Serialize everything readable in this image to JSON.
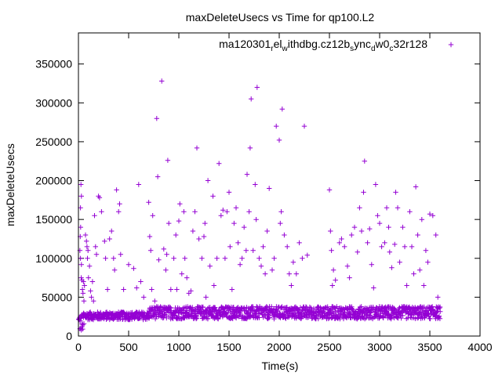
{
  "chart_data": {
    "type": "scatter",
    "title": "maxDeleteUsecs vs Time for qp100.L2",
    "xlabel": "Time(s)",
    "ylabel": "maxDeleteUsecs",
    "xlim": [
      0,
      4000
    ],
    "ylim": [
      0,
      390000
    ],
    "xticks": [
      0,
      500,
      1000,
      1500,
      2000,
      2500,
      3000,
      3500,
      4000
    ],
    "yticks": [
      0,
      50000,
      100000,
      150000,
      200000,
      250000,
      300000,
      350000
    ],
    "grid": false,
    "legend_position": "top-right",
    "marker": "+",
    "color": "#9400d3",
    "series": [
      {
        "name": "ma120301_rel_withdbg.cz12b_sync_dw0_c32r128",
        "legend_text": {
          "parts": [
            {
              "text": "ma120301",
              "sub": false
            },
            {
              "text": "r",
              "sub": true
            },
            {
              "text": "el",
              "sub": false
            },
            {
              "text": "w",
              "sub": true
            },
            {
              "text": "ithdbg.cz12b",
              "sub": false
            },
            {
              "text": "s",
              "sub": true
            },
            {
              "text": "ync",
              "sub": false
            },
            {
              "text": "d",
              "sub": true
            },
            {
              "text": "w0",
              "sub": false
            },
            {
              "text": "c",
              "sub": true
            },
            {
              "text": "32r128",
              "sub": false
            }
          ]
        },
        "baseline": {
          "segments": [
            {
              "x_start": 0,
              "x_end": 50,
              "y_min": 5000,
              "y_max": 30000
            },
            {
              "x_start": 50,
              "x_end": 700,
              "y_min": 21000,
              "y_max": 31000
            },
            {
              "x_start": 700,
              "x_end": 3600,
              "y_min": 22000,
              "y_max": 38000
            }
          ]
        },
        "points": [
          [
            25,
            195000
          ],
          [
            30,
            180000
          ],
          [
            20,
            165000
          ],
          [
            22,
            140000
          ],
          [
            18,
            128000
          ],
          [
            15,
            110000
          ],
          [
            20,
            100000
          ],
          [
            30,
            92000
          ],
          [
            28,
            75000
          ],
          [
            35,
            72000
          ],
          [
            40,
            60000
          ],
          [
            45,
            55000
          ],
          [
            50,
            70000
          ],
          [
            55,
            45000
          ],
          [
            60,
            65000
          ],
          [
            70,
            130000
          ],
          [
            80,
            122000
          ],
          [
            85,
            115000
          ],
          [
            90,
            100000
          ],
          [
            95,
            110000
          ],
          [
            100,
            75000
          ],
          [
            110,
            90000
          ],
          [
            120,
            58000
          ],
          [
            130,
            50000
          ],
          [
            140,
            70000
          ],
          [
            150,
            45000
          ],
          [
            160,
            155000
          ],
          [
            170,
            115000
          ],
          [
            180,
            105000
          ],
          [
            200,
            180000
          ],
          [
            210,
            178000
          ],
          [
            230,
            160000
          ],
          [
            260,
            122000
          ],
          [
            270,
            100000
          ],
          [
            290,
            60000
          ],
          [
            310,
            125000
          ],
          [
            330,
            135000
          ],
          [
            350,
            100000
          ],
          [
            360,
            85000
          ],
          [
            380,
            188000
          ],
          [
            400,
            160000
          ],
          [
            410,
            170000
          ],
          [
            420,
            105000
          ],
          [
            450,
            60000
          ],
          [
            500,
            92000
          ],
          [
            550,
            87000
          ],
          [
            580,
            62000
          ],
          [
            600,
            195000
          ],
          [
            620,
            70000
          ],
          [
            650,
            50000
          ],
          [
            700,
            172000
          ],
          [
            710,
            128000
          ],
          [
            720,
            110000
          ],
          [
            730,
            60000
          ],
          [
            740,
            155000
          ],
          [
            760,
            45000
          ],
          [
            780,
            280000
          ],
          [
            790,
            205000
          ],
          [
            800,
            98000
          ],
          [
            830,
            328000
          ],
          [
            850,
            112000
          ],
          [
            870,
            85000
          ],
          [
            880,
            105000
          ],
          [
            890,
            226000
          ],
          [
            900,
            145000
          ],
          [
            920,
            60000
          ],
          [
            950,
            100000
          ],
          [
            970,
            130000
          ],
          [
            980,
            60000
          ],
          [
            1000,
            148000
          ],
          [
            1010,
            170000
          ],
          [
            1030,
            80000
          ],
          [
            1050,
            160000
          ],
          [
            1060,
            100000
          ],
          [
            1080,
            75000
          ],
          [
            1100,
            55000
          ],
          [
            1120,
            58000
          ],
          [
            1140,
            135000
          ],
          [
            1160,
            160000
          ],
          [
            1180,
            242000
          ],
          [
            1200,
            125000
          ],
          [
            1230,
            100000
          ],
          [
            1250,
            128000
          ],
          [
            1260,
            145000
          ],
          [
            1270,
            50000
          ],
          [
            1290,
            200000
          ],
          [
            1310,
            90000
          ],
          [
            1340,
            180000
          ],
          [
            1350,
            65000
          ],
          [
            1380,
            100000
          ],
          [
            1400,
            222000
          ],
          [
            1420,
            155000
          ],
          [
            1440,
            162000
          ],
          [
            1460,
            100000
          ],
          [
            1480,
            160000
          ],
          [
            1500,
            185000
          ],
          [
            1510,
            115000
          ],
          [
            1530,
            60000
          ],
          [
            1550,
            145000
          ],
          [
            1570,
            165000
          ],
          [
            1590,
            120000
          ],
          [
            1610,
            92000
          ],
          [
            1630,
            100000
          ],
          [
            1650,
            140000
          ],
          [
            1670,
            110000
          ],
          [
            1680,
            208000
          ],
          [
            1700,
            160000
          ],
          [
            1710,
            242000
          ],
          [
            1720,
            305000
          ],
          [
            1740,
            110000
          ],
          [
            1760,
            195000
          ],
          [
            1770,
            150000
          ],
          [
            1780,
            320000
          ],
          [
            1800,
            100000
          ],
          [
            1820,
            90000
          ],
          [
            1840,
            115000
          ],
          [
            1860,
            80000
          ],
          [
            1880,
            135000
          ],
          [
            1900,
            190000
          ],
          [
            1930,
            85000
          ],
          [
            1950,
            100000
          ],
          [
            1970,
            270000
          ],
          [
            2000,
            252000
          ],
          [
            2010,
            145000
          ],
          [
            2020,
            160000
          ],
          [
            2030,
            292000
          ],
          [
            2050,
            130000
          ],
          [
            2080,
            115000
          ],
          [
            2100,
            80000
          ],
          [
            2120,
            65000
          ],
          [
            2140,
            95000
          ],
          [
            2170,
            80000
          ],
          [
            2200,
            120000
          ],
          [
            2230,
            100000
          ],
          [
            2250,
            270000
          ],
          [
            2280,
            104000
          ],
          [
            2500,
            188000
          ],
          [
            2510,
            135000
          ],
          [
            2520,
            110000
          ],
          [
            2530,
            65000
          ],
          [
            2540,
            85000
          ],
          [
            2560,
            72000
          ],
          [
            2600,
            120000
          ],
          [
            2620,
            125000
          ],
          [
            2650,
            115000
          ],
          [
            2680,
            90000
          ],
          [
            2700,
            75000
          ],
          [
            2720,
            130000
          ],
          [
            2750,
            140000
          ],
          [
            2780,
            108000
          ],
          [
            2800,
            165000
          ],
          [
            2820,
            135000
          ],
          [
            2840,
            185000
          ],
          [
            2850,
            225000
          ],
          [
            2880,
            120000
          ],
          [
            2900,
            138000
          ],
          [
            2920,
            92000
          ],
          [
            2940,
            62000
          ],
          [
            2960,
            195000
          ],
          [
            2980,
            155000
          ],
          [
            3000,
            145000
          ],
          [
            3020,
            115000
          ],
          [
            3050,
            120000
          ],
          [
            3070,
            165000
          ],
          [
            3090,
            140000
          ],
          [
            3100,
            108000
          ],
          [
            3120,
            88000
          ],
          [
            3150,
            118000
          ],
          [
            3160,
            185000
          ],
          [
            3180,
            165000
          ],
          [
            3200,
            95000
          ],
          [
            3230,
            140000
          ],
          [
            3250,
            115000
          ],
          [
            3270,
            65000
          ],
          [
            3300,
            160000
          ],
          [
            3320,
            115000
          ],
          [
            3340,
            80000
          ],
          [
            3360,
            192000
          ],
          [
            3380,
            130000
          ],
          [
            3400,
            85000
          ],
          [
            3420,
            150000
          ],
          [
            3440,
            65000
          ],
          [
            3460,
            110000
          ],
          [
            3480,
            95000
          ],
          [
            3500,
            157000
          ],
          [
            3530,
            155000
          ],
          [
            3560,
            130000
          ],
          [
            3580,
            50000
          ]
        ]
      }
    ]
  }
}
